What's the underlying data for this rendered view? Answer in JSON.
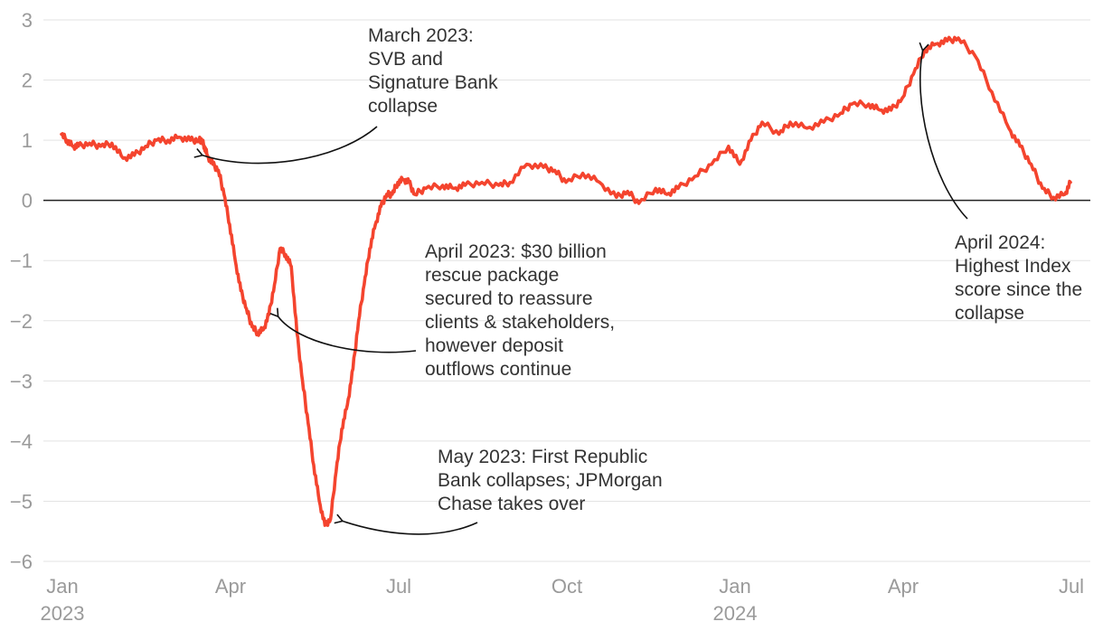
{
  "chart_data": {
    "type": "line",
    "title": "",
    "xlabel": "",
    "ylabel": "",
    "ylim": [
      -6,
      3
    ],
    "yticks": [
      3,
      2,
      1,
      0,
      -1,
      -2,
      -3,
      -4,
      -5,
      -6
    ],
    "ytick_labels": [
      "3",
      "2",
      "1",
      "0",
      "−1",
      "−2",
      "−3",
      "−4",
      "−5",
      "−6"
    ],
    "xlim": [
      0,
      18.2
    ],
    "xticks": [
      {
        "value": 0,
        "label": "Jan",
        "sublabel": "2023"
      },
      {
        "value": 3,
        "label": "Apr",
        "sublabel": ""
      },
      {
        "value": 6,
        "label": "Jul",
        "sublabel": ""
      },
      {
        "value": 9,
        "label": "Oct",
        "sublabel": ""
      },
      {
        "value": 12,
        "label": "Jan",
        "sublabel": "2024"
      },
      {
        "value": 15,
        "label": "Apr",
        "sublabel": ""
      },
      {
        "value": 18,
        "label": "Jul",
        "sublabel": ""
      }
    ],
    "series": [
      {
        "name": "Index score",
        "color": "#f4442e",
        "x": [
          0,
          0.1,
          0.2,
          0.3,
          0.5,
          0.7,
          0.9,
          1.1,
          1.3,
          1.5,
          1.7,
          1.9,
          2.1,
          2.3,
          2.45,
          2.5,
          2.55,
          2.6,
          2.7,
          2.8,
          2.9,
          3.0,
          3.1,
          3.2,
          3.3,
          3.4,
          3.5,
          3.6,
          3.7,
          3.8,
          3.9,
          4.0,
          4.1,
          4.2,
          4.3,
          4.4,
          4.5,
          4.6,
          4.7,
          4.8,
          4.9,
          5.0,
          5.1,
          5.2,
          5.3,
          5.4,
          5.5,
          5.6,
          5.7,
          5.8,
          5.9,
          6.0,
          6.1,
          6.2,
          6.3,
          6.5,
          6.8,
          7.0,
          7.2,
          7.5,
          7.8,
          8.0,
          8.3,
          8.6,
          8.8,
          9.0,
          9.3,
          9.6,
          9.9,
          10.1,
          10.3,
          10.6,
          10.8,
          11.0,
          11.3,
          11.6,
          11.9,
          12.1,
          12.3,
          12.5,
          12.8,
          13.0,
          13.3,
          13.6,
          13.9,
          14.1,
          14.4,
          14.6,
          14.8,
          15.0,
          15.2,
          15.4,
          15.6,
          15.8,
          16.0,
          16.3,
          16.6,
          16.9,
          17.1,
          17.3,
          17.5,
          17.7,
          17.9,
          18.0
        ],
        "y": [
          1.1,
          1.0,
          0.9,
          0.9,
          0.95,
          0.9,
          0.95,
          0.7,
          0.75,
          0.9,
          1.0,
          1.0,
          1.05,
          1.0,
          1.0,
          1.0,
          0.9,
          0.75,
          0.6,
          0.5,
          0.1,
          -0.4,
          -1.0,
          -1.5,
          -1.8,
          -2.1,
          -2.2,
          -2.15,
          -1.9,
          -1.4,
          -0.8,
          -0.9,
          -1.1,
          -2.2,
          -3.0,
          -3.7,
          -4.4,
          -5.0,
          -5.4,
          -5.3,
          -4.5,
          -3.8,
          -3.4,
          -2.8,
          -2.0,
          -1.4,
          -0.8,
          -0.4,
          -0.1,
          0.1,
          0.1,
          0.3,
          0.35,
          0.3,
          0.1,
          0.2,
          0.25,
          0.2,
          0.25,
          0.3,
          0.25,
          0.3,
          0.6,
          0.55,
          0.5,
          0.3,
          0.45,
          0.3,
          0.05,
          0.15,
          -0.05,
          0.2,
          0.1,
          0.2,
          0.4,
          0.6,
          0.9,
          0.6,
          1.0,
          1.3,
          1.1,
          1.3,
          1.2,
          1.3,
          1.45,
          1.6,
          1.6,
          1.5,
          1.5,
          1.7,
          2.1,
          2.5,
          2.6,
          2.65,
          2.7,
          2.4,
          1.8,
          1.2,
          0.9,
          0.6,
          0.2,
          0.05,
          0.1,
          0.3
        ]
      }
    ],
    "annotations": [
      {
        "lines": [
          "March 2023:",
          "SVB and",
          "Signature Bank",
          "collapse"
        ],
        "target_x": 2.45,
        "target_y": 0.75
      },
      {
        "lines": [
          "April 2023: $30 billion",
          "rescue package",
          "secured to reassure",
          "clients & stakeholders,",
          "however deposit",
          "outflows continue"
        ],
        "target_x": 3.8,
        "target_y": -1.9
      },
      {
        "lines": [
          "May 2023: First Republic",
          "Bank collapses; JPMorgan",
          "Chase takes over"
        ],
        "target_x": 4.95,
        "target_y": -5.3
      },
      {
        "lines": [
          "April 2024:",
          "Highest Index",
          "score since the",
          "collapse"
        ],
        "target_x": 15.3,
        "target_y": 2.55
      }
    ]
  }
}
